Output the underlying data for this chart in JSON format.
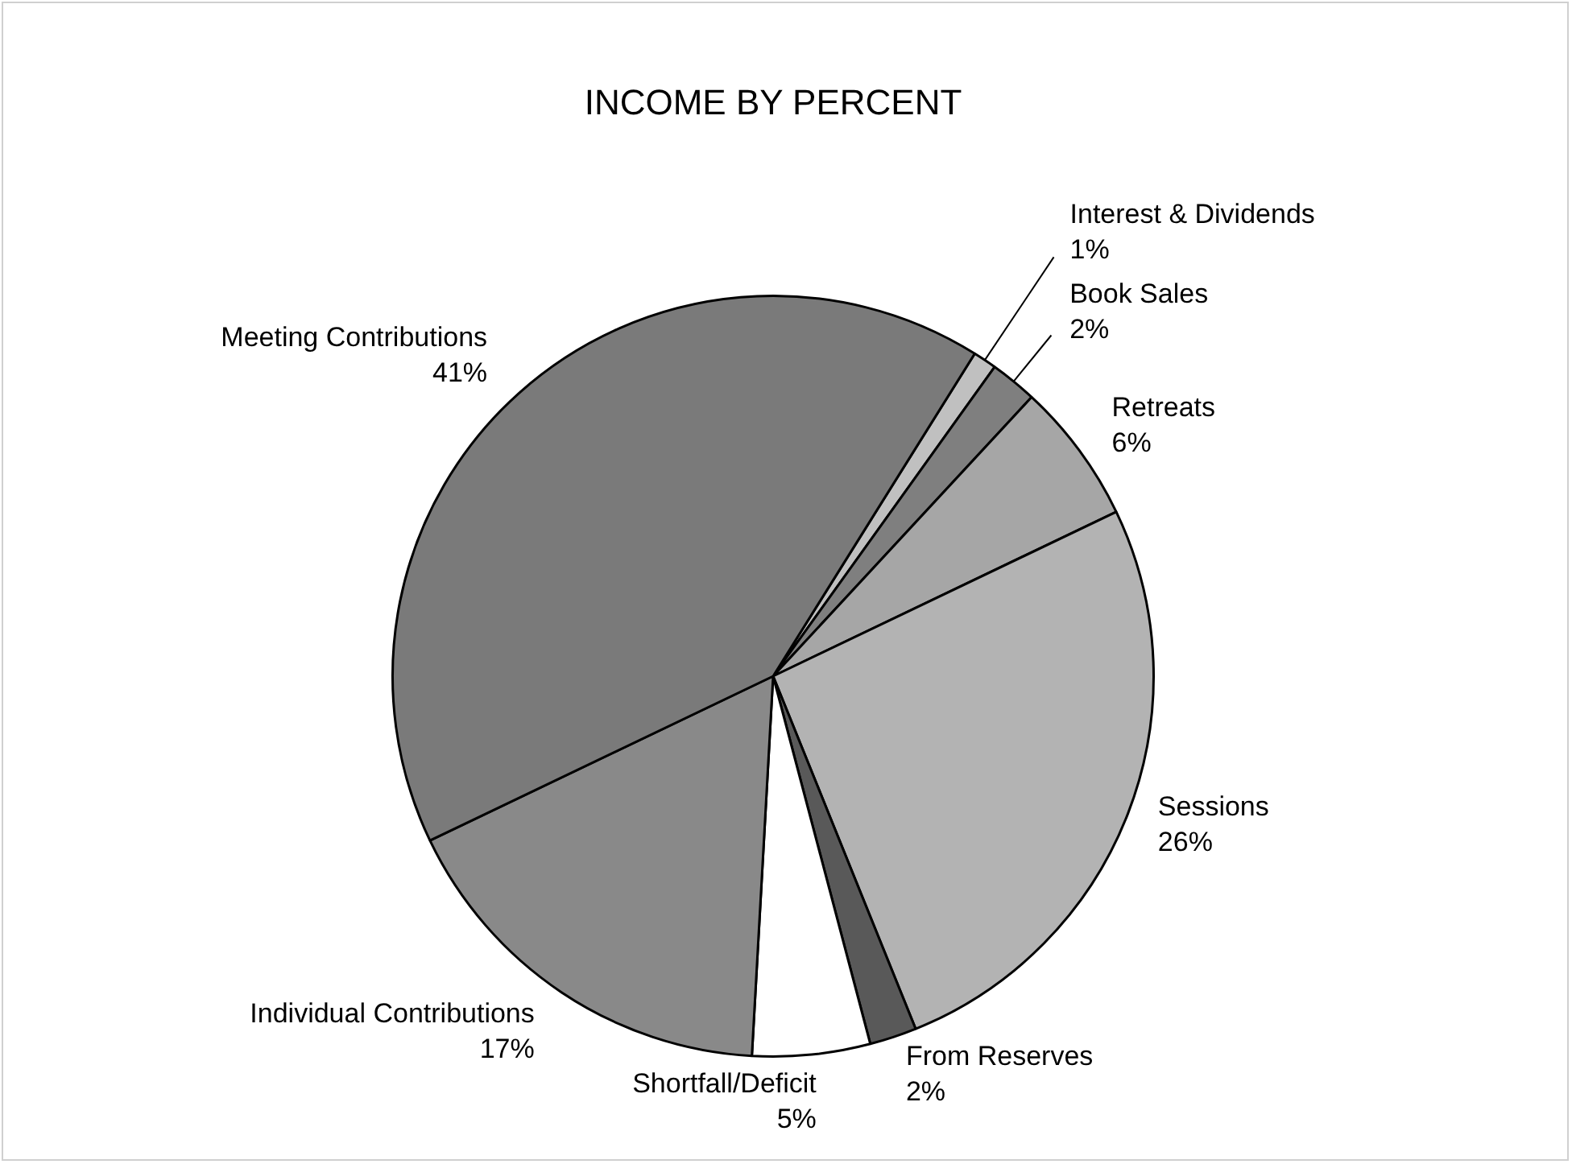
{
  "chart_data": {
    "type": "pie",
    "title": "INCOME BY PERCENT",
    "categories": [
      "Interest & Dividends",
      "Book Sales",
      "Retreats",
      "Sessions",
      "From Reserves",
      "Shortfall/Deficit",
      "Individual Contributions",
      "Meeting Contributions"
    ],
    "values": [
      1,
      2,
      6,
      26,
      2,
      5,
      17,
      41
    ],
    "value_labels": [
      "1%",
      "2%",
      "6%",
      "26%",
      "2%",
      "5%",
      "17%",
      "41%"
    ],
    "colors": [
      "#c0c0c0",
      "#7f7f7f",
      "#a6a6a6",
      "#b3b3b3",
      "#595959",
      "#ffffff",
      "#898989",
      "#7a7a7a"
    ]
  }
}
